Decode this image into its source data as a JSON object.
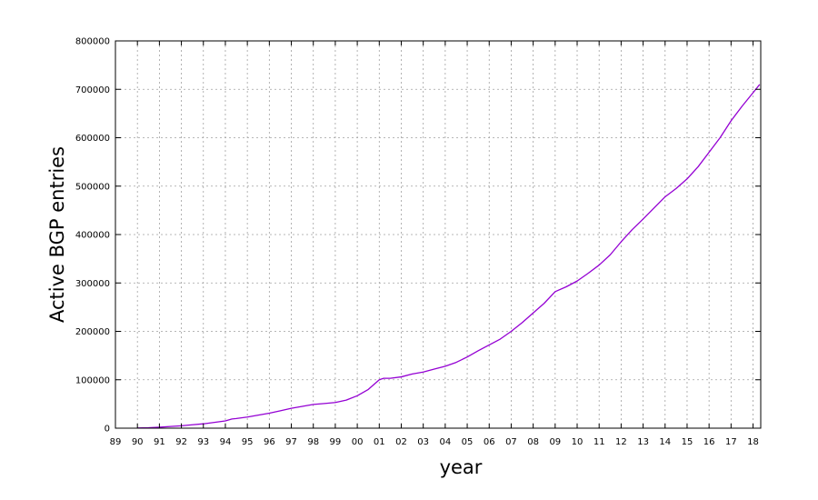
{
  "chart_data": {
    "type": "line",
    "title": "",
    "xlabel": "year",
    "ylabel": "Active BGP entries",
    "xlim": [
      1989.0,
      2018.35
    ],
    "ylim": [
      0,
      800000
    ],
    "grid": true,
    "legend": "none",
    "x_ticks": [
      {
        "value": 1989,
        "label": "89"
      },
      {
        "value": 1990,
        "label": "90"
      },
      {
        "value": 1991,
        "label": "91"
      },
      {
        "value": 1992,
        "label": "92"
      },
      {
        "value": 1993,
        "label": "93"
      },
      {
        "value": 1994,
        "label": "94"
      },
      {
        "value": 1995,
        "label": "95"
      },
      {
        "value": 1996,
        "label": "96"
      },
      {
        "value": 1997,
        "label": "97"
      },
      {
        "value": 1998,
        "label": "98"
      },
      {
        "value": 1999,
        "label": "99"
      },
      {
        "value": 2000,
        "label": "00"
      },
      {
        "value": 2001,
        "label": "01"
      },
      {
        "value": 2002,
        "label": "02"
      },
      {
        "value": 2003,
        "label": "03"
      },
      {
        "value": 2004,
        "label": "04"
      },
      {
        "value": 2005,
        "label": "05"
      },
      {
        "value": 2006,
        "label": "06"
      },
      {
        "value": 2007,
        "label": "07"
      },
      {
        "value": 2008,
        "label": "08"
      },
      {
        "value": 2009,
        "label": "09"
      },
      {
        "value": 2010,
        "label": "10"
      },
      {
        "value": 2011,
        "label": "11"
      },
      {
        "value": 2012,
        "label": "12"
      },
      {
        "value": 2013,
        "label": "13"
      },
      {
        "value": 2014,
        "label": "14"
      },
      {
        "value": 2015,
        "label": "15"
      },
      {
        "value": 2016,
        "label": "16"
      },
      {
        "value": 2017,
        "label": "17"
      },
      {
        "value": 2018,
        "label": "18"
      }
    ],
    "y_ticks": [
      {
        "value": 0,
        "label": "0"
      },
      {
        "value": 100000,
        "label": "100000"
      },
      {
        "value": 200000,
        "label": "200000"
      },
      {
        "value": 300000,
        "label": "300000"
      },
      {
        "value": 400000,
        "label": "400000"
      },
      {
        "value": 500000,
        "label": "500000"
      },
      {
        "value": 600000,
        "label": "600000"
      },
      {
        "value": 700000,
        "label": "700000"
      },
      {
        "value": 800000,
        "label": "800000"
      }
    ],
    "series": [
      {
        "color": "#9400d3",
        "x": [
          1990.0,
          1990.5,
          1991.0,
          1991.5,
          1992.0,
          1992.5,
          1993.0,
          1993.5,
          1994.0,
          1994.3,
          1994.5,
          1995.0,
          1995.5,
          1996.0,
          1996.5,
          1997.0,
          1997.5,
          1998.0,
          1998.5,
          1999.0,
          1999.5,
          2000.0,
          2000.5,
          2001.0,
          2001.2,
          2001.5,
          2002.0,
          2002.5,
          2003.0,
          2003.5,
          2004.0,
          2004.5,
          2005.0,
          2005.5,
          2006.0,
          2006.5,
          2007.0,
          2007.5,
          2008.0,
          2008.5,
          2009.0,
          2009.5,
          2010.0,
          2010.5,
          2011.0,
          2011.5,
          2012.0,
          2012.5,
          2013.0,
          2013.5,
          2014.0,
          2014.5,
          2015.0,
          2015.5,
          2016.0,
          2016.5,
          2017.0,
          2017.5,
          2018.0,
          2018.3
        ],
        "y": [
          500,
          1000,
          2000,
          3500,
          5000,
          7000,
          9000,
          12000,
          15000,
          19000,
          20000,
          23000,
          27000,
          31000,
          36000,
          41000,
          45000,
          49000,
          51000,
          53000,
          58000,
          67000,
          80000,
          100000,
          103000,
          103000,
          106000,
          112000,
          116000,
          122000,
          128000,
          136000,
          147000,
          160000,
          172000,
          184000,
          200000,
          218000,
          238000,
          258000,
          282000,
          292000,
          304000,
          320000,
          337000,
          358000,
          385000,
          410000,
          432000,
          455000,
          478000,
          495000,
          515000,
          540000,
          570000,
          600000,
          635000,
          665000,
          693000,
          710000
        ]
      }
    ]
  }
}
